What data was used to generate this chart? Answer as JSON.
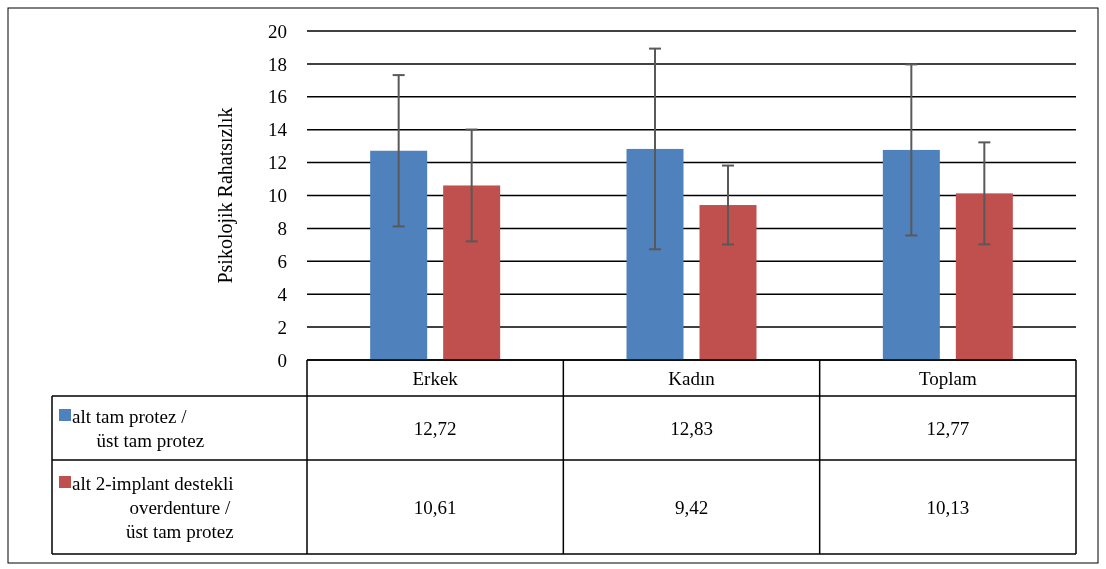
{
  "chart_data": {
    "type": "bar",
    "ylabel": "Psikolojik Rahatsızlık",
    "categories": [
      "Erkek",
      "Kadın",
      "Toplam"
    ],
    "series": [
      {
        "name": "alt tam protez / üst tam protez",
        "color": "#4f81bd",
        "values": [
          12.72,
          12.83,
          12.77
        ],
        "errors": [
          4.6,
          6.1,
          5.2
        ],
        "value_labels": [
          "12,72",
          "12,83",
          "12,77"
        ]
      },
      {
        "name": "alt 2-implant destekli overdenture / üst tam protez",
        "color": "#c0504d",
        "values": [
          10.61,
          9.42,
          10.13
        ],
        "errors": [
          3.4,
          2.4,
          3.1
        ],
        "value_labels": [
          "10,61",
          "9,42",
          "10,13"
        ]
      }
    ],
    "ylim": [
      0,
      20
    ],
    "yticks": [
      0,
      2,
      4,
      6,
      8,
      10,
      12,
      14,
      16,
      18,
      20
    ],
    "grid": "y",
    "legend": "bottom"
  }
}
